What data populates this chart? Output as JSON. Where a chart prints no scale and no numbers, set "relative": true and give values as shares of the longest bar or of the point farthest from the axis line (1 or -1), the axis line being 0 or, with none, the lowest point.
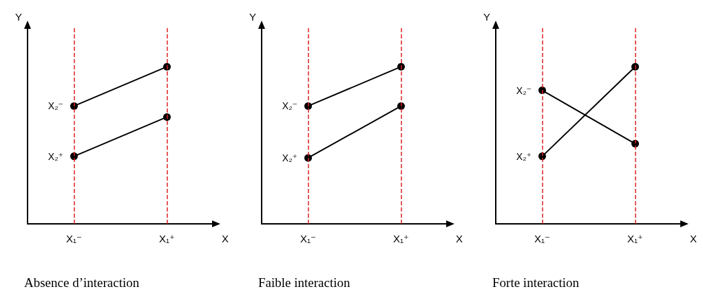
{
  "chart_data": [
    {
      "type": "line",
      "title": "Absence d’interaction",
      "xlabel": "X",
      "ylabel": "Y",
      "relative": true,
      "categories": [
        "X₁⁻",
        "X₁⁺"
      ],
      "marker": "circle",
      "line_style": "solid",
      "legend": false,
      "grid": "x",
      "series": [
        {
          "name": "X₂⁻",
          "color": "#000000",
          "values": [
            0.75,
            1
          ]
        },
        {
          "name": "X₂⁺",
          "color": "#000000",
          "values": [
            0.43,
            0.68
          ]
        }
      ]
    },
    {
      "type": "line",
      "title": "Faible interaction",
      "xlabel": "X",
      "ylabel": "Y",
      "relative": true,
      "categories": [
        "X₁⁻",
        "X₁⁺"
      ],
      "marker": "circle",
      "line_style": "solid",
      "legend": false,
      "grid": "x",
      "series": [
        {
          "name": "X₂⁻",
          "color": "#000000",
          "values": [
            0.75,
            1
          ]
        },
        {
          "name": "X₂⁺",
          "color": "#000000",
          "values": [
            0.42,
            0.75
          ]
        }
      ]
    },
    {
      "type": "line",
      "title": "Forte interaction",
      "xlabel": "X",
      "ylabel": "Y",
      "relative": true,
      "categories": [
        "X₁⁻",
        "X₁⁺"
      ],
      "marker": "circle",
      "line_style": "solid",
      "legend": false,
      "grid": "x",
      "series": [
        {
          "name": "X₂⁻",
          "color": "#000000",
          "values": [
            0.85,
            0.51
          ]
        },
        {
          "name": "X₂⁺",
          "color": "#000000",
          "values": [
            0.43,
            1
          ]
        }
      ]
    }
  ]
}
